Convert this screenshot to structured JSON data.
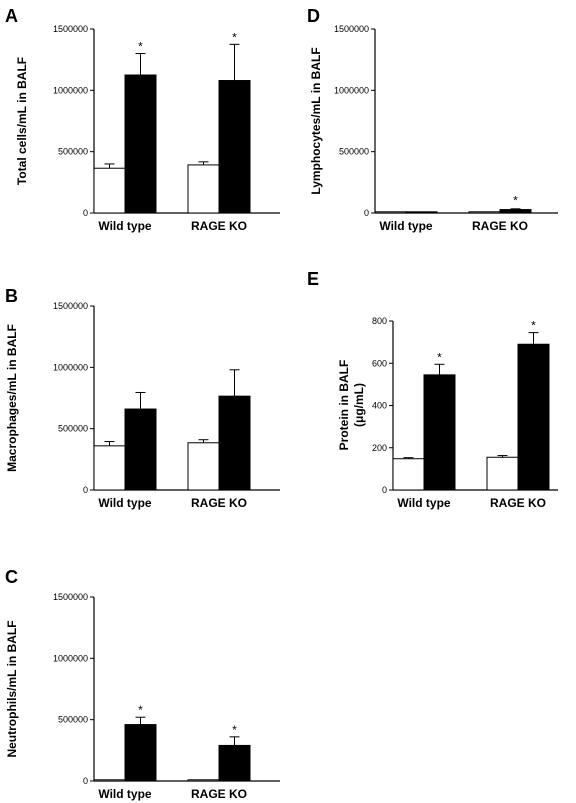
{
  "colors": {
    "control_fill": "#ffffff",
    "treated_fill": "#000000",
    "stroke": "#000000"
  },
  "chart_data": [
    {
      "panel": "A",
      "type": "bar",
      "categories": [
        "Wild type",
        "RAGE KO"
      ],
      "ylabel": "Total cells/mL in BALF",
      "ylim": [
        0,
        1500000
      ],
      "yticks": [
        "0",
        "500000",
        "1000000",
        "1500000"
      ],
      "series": [
        {
          "values": [
            365000,
            392000
          ],
          "errors": [
            35000,
            25000
          ],
          "sig": [
            "",
            ""
          ]
        },
        {
          "values": [
            1125000,
            1080000
          ],
          "errors": [
            175000,
            295000
          ],
          "sig": [
            "*",
            "*"
          ]
        }
      ]
    },
    {
      "panel": "D",
      "type": "bar",
      "categories": [
        "Wild type",
        "RAGE KO"
      ],
      "ylabel": "Lymphocytes/mL in BALF",
      "ylim": [
        0,
        1500000
      ],
      "yticks": [
        "0",
        "500000",
        "1000000",
        "1500000"
      ],
      "series": [
        {
          "values": [
            2000,
            1000
          ],
          "errors": [
            1000,
            1000
          ],
          "sig": [
            "",
            ""
          ]
        },
        {
          "values": [
            5000,
            28000
          ],
          "errors": [
            2000,
            6000
          ],
          "sig": [
            "",
            "*"
          ]
        }
      ]
    },
    {
      "panel": "B",
      "type": "bar",
      "categories": [
        "Wild type",
        "RAGE KO"
      ],
      "ylabel": "Macrophages/mL in BALF",
      "ylim": [
        0,
        1500000
      ],
      "yticks": [
        "0",
        "500000",
        "1000000",
        "1500000"
      ],
      "series": [
        {
          "values": [
            360000,
            385000
          ],
          "errors": [
            35000,
            25000
          ],
          "sig": [
            "",
            ""
          ]
        },
        {
          "values": [
            660000,
            765000
          ],
          "errors": [
            135000,
            215000
          ],
          "sig": [
            "",
            ""
          ]
        }
      ]
    },
    {
      "panel": "E",
      "type": "bar",
      "categories": [
        "Wild type",
        "RAGE KO"
      ],
      "ylabel": "Protein in BALF",
      "ylabel2": "(μg/mL)",
      "ylim": [
        0,
        800
      ],
      "yticks": [
        "0",
        "200",
        "400",
        "600",
        "800"
      ],
      "series": [
        {
          "values": [
            148,
            155
          ],
          "errors": [
            5,
            8
          ],
          "sig": [
            "",
            ""
          ]
        },
        {
          "values": [
            545,
            690
          ],
          "errors": [
            50,
            55
          ],
          "sig": [
            "*",
            "*"
          ]
        }
      ]
    },
    {
      "panel": "C",
      "type": "bar",
      "categories": [
        "Wild type",
        "RAGE KO"
      ],
      "ylabel": "Neutrophils/mL in BALF",
      "ylim": [
        0,
        1500000
      ],
      "yticks": [
        "0",
        "500000",
        "1000000",
        "1500000"
      ],
      "series": [
        {
          "values": [
            4000,
            2000
          ],
          "errors": [
            1500,
            1000
          ],
          "sig": [
            "",
            ""
          ]
        },
        {
          "values": [
            460000,
            290000
          ],
          "errors": [
            60000,
            70000
          ],
          "sig": [
            "*",
            "*"
          ]
        }
      ]
    }
  ]
}
